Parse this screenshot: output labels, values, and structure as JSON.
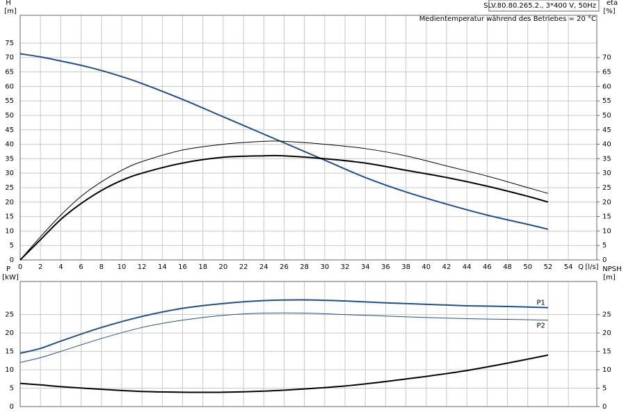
{
  "chart_data": [
    {
      "type": "line",
      "header": "SLV.80.80.265.2., 3*400 V, 50Hz",
      "annotation": "Medientemperatur während des Betriebes = 20 °C",
      "ylabel": "H",
      "yunit": "[m]",
      "y2label": "eta",
      "y2unit": "[%]",
      "xlabel": "Q",
      "xunit": "[l/s]",
      "x": [
        0,
        2,
        4,
        6,
        8,
        10,
        12,
        16,
        20,
        24,
        26,
        30,
        34,
        38,
        42,
        46,
        50,
        52
      ],
      "xlim": [
        0,
        56.8
      ],
      "xticks": [
        0,
        2,
        4,
        6,
        8,
        10,
        12,
        14,
        16,
        18,
        20,
        22,
        24,
        26,
        28,
        30,
        32,
        34,
        36,
        38,
        40,
        42,
        44,
        46,
        48,
        50,
        52,
        54
      ],
      "ylim": [
        0,
        84.6
      ],
      "yticks": [
        0,
        5,
        10,
        15,
        20,
        25,
        30,
        35,
        40,
        45,
        50,
        55,
        60,
        65,
        70,
        75
      ],
      "y2lim": [
        0,
        84.6
      ],
      "y2ticks": [
        0,
        5,
        10,
        15,
        20,
        25,
        30,
        35,
        40,
        45,
        50,
        55,
        60,
        65,
        70
      ],
      "grid": true,
      "series": [
        {
          "color": "#1f4e8c",
          "width": 2,
          "values": [
            71.3,
            70.2,
            68.8,
            67.3,
            65.5,
            63.4,
            61,
            55.5,
            49.5,
            43.5,
            40.5,
            34.5,
            28.5,
            23.5,
            19.3,
            15.5,
            12.3,
            10.6
          ]
        },
        {
          "color": "#000000",
          "width": 1,
          "axis": "y2",
          "values": [
            0,
            8,
            15.5,
            22,
            27,
            31,
            34,
            38,
            40,
            41,
            41,
            40,
            38.5,
            36,
            32.5,
            29,
            25,
            23
          ]
        },
        {
          "color": "#000000",
          "width": 2,
          "axis": "y2",
          "values": [
            0,
            7,
            14,
            19.5,
            24,
            27.5,
            30,
            33.5,
            35.5,
            36,
            36,
            35,
            33.5,
            31,
            28.5,
            25.5,
            22,
            20
          ]
        }
      ]
    },
    {
      "type": "line",
      "ylabel": "P",
      "yunit": "[kW]",
      "y2label": "NPSH",
      "y2unit": "[m]",
      "x": [
        0,
        2,
        4,
        8,
        12,
        16,
        20,
        24,
        28,
        32,
        36,
        40,
        44,
        48,
        52
      ],
      "xlim": [
        0,
        56.8
      ],
      "xticks": [
        0,
        2,
        4,
        6,
        8,
        10,
        12,
        14,
        16,
        18,
        20,
        22,
        24,
        26,
        28,
        30,
        32,
        34,
        36,
        38,
        40,
        42,
        44,
        46,
        48,
        50,
        52,
        54
      ],
      "ylim": [
        0,
        34
      ],
      "yticks": [
        0,
        5,
        10,
        15,
        20,
        25
      ],
      "y2lim": [
        0,
        34
      ],
      "y2ticks": [
        0,
        5,
        10,
        15,
        20,
        25
      ],
      "grid": true,
      "series": [
        {
          "name": "P1",
          "color": "#1f4e8c",
          "width": 2,
          "values": [
            14.5,
            15.8,
            17.8,
            21.5,
            24.5,
            26.7,
            28,
            28.8,
            29,
            28.7,
            28.2,
            27.8,
            27.4,
            27.2,
            26.9
          ]
        },
        {
          "name": "P2",
          "color": "#1f4e8c",
          "width": 1,
          "values": [
            12,
            13.3,
            15,
            18.5,
            21.5,
            23.5,
            24.8,
            25.4,
            25.4,
            25,
            24.6,
            24.2,
            23.9,
            23.7,
            23.5
          ]
        },
        {
          "color": "#000000",
          "width": 2,
          "axis": "y2",
          "values": [
            6.3,
            5.9,
            5.4,
            4.7,
            4.1,
            3.9,
            3.9,
            4.2,
            4.8,
            5.6,
            6.8,
            8.2,
            9.8,
            11.8,
            14
          ]
        }
      ]
    }
  ]
}
